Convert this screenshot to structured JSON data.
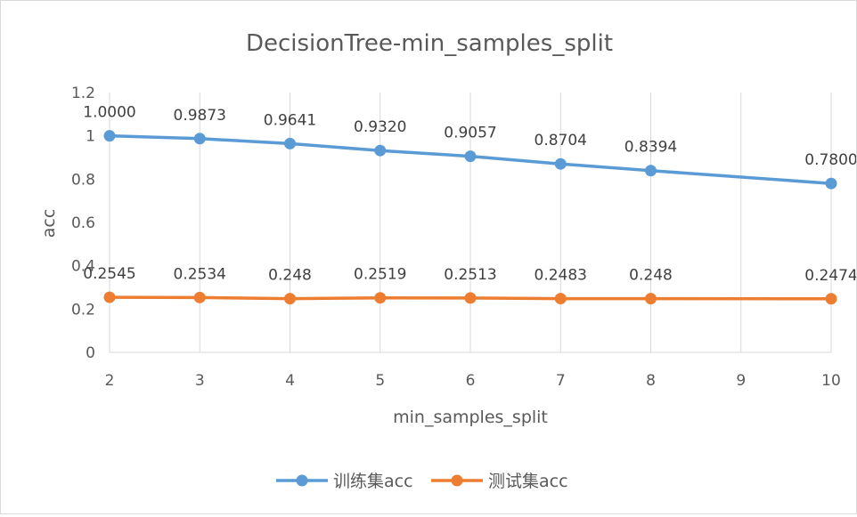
{
  "chart_data": {
    "type": "line",
    "title": "DecisionTree-min_samples_split",
    "xlabel": "min_samples_split",
    "ylabel": "acc",
    "x": [
      2,
      3,
      4,
      5,
      6,
      7,
      8,
      9,
      10
    ],
    "y_ticks": [
      "0",
      "0.2",
      "0.4",
      "0.6",
      "0.8",
      "1",
      "1.2"
    ],
    "ylim": [
      0,
      1.2
    ],
    "grid": "vertical",
    "legend_position": "bottom",
    "series": [
      {
        "name": "训练集acc",
        "color": "#5b9bd5",
        "x": [
          2,
          3,
          4,
          5,
          6,
          7,
          8,
          10
        ],
        "values": [
          1.0,
          0.9873,
          0.9641,
          0.932,
          0.9057,
          0.8704,
          0.8394,
          0.78
        ],
        "labels": [
          "1.0000",
          "0.9873",
          "0.9641",
          "0.9320",
          "0.9057",
          "0.8704",
          "0.8394",
          "0.7800"
        ]
      },
      {
        "name": "测试集acc",
        "color": "#ed7d31",
        "x": [
          2,
          3,
          4,
          5,
          6,
          7,
          8,
          10
        ],
        "values": [
          0.2545,
          0.2534,
          0.248,
          0.2519,
          0.2513,
          0.2483,
          0.248,
          0.2474
        ],
        "labels": [
          "0.2545",
          "0.2534",
          "0.248",
          "0.2519",
          "0.2513",
          "0.2483",
          "0.248",
          "0.2474"
        ]
      }
    ]
  }
}
